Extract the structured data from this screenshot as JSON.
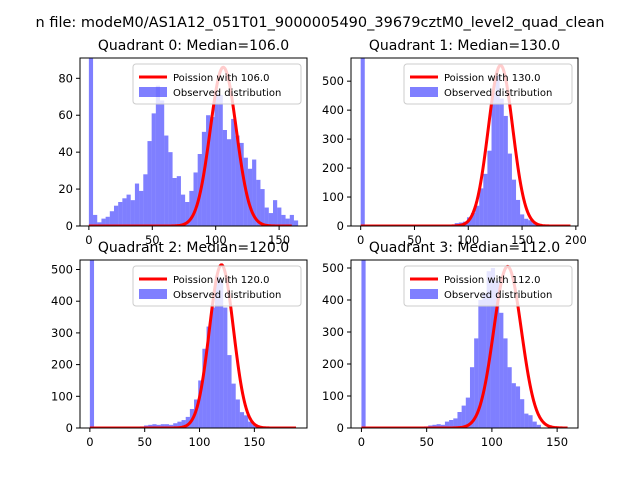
{
  "figure": {
    "suptitle": "n file: modeM0/AS1A12_051T01_9000005490_39679cztM0_level2_quad_clean"
  },
  "colors": {
    "hist": "#0000ff",
    "hist_alpha": 0.5,
    "fit": "#ff0000"
  },
  "chart_data": [
    {
      "type": "bar",
      "title": "Quadrant 0: Median=106.0",
      "xlim": [
        -7,
        172
      ],
      "ylim": [
        0,
        91
      ],
      "xticks": [
        0,
        50,
        100,
        150
      ],
      "yticks": [
        0,
        20,
        40,
        60,
        80
      ],
      "bin_start": 0,
      "bin_width": 3.3,
      "counts": [
        91,
        6,
        2,
        4,
        5,
        8,
        11,
        13,
        15,
        17,
        14,
        23,
        19,
        28,
        46,
        61,
        76,
        68,
        49,
        40,
        26,
        27,
        17,
        13,
        19,
        29,
        39,
        51,
        60,
        59,
        72,
        71,
        52,
        47,
        58,
        49,
        45,
        37,
        31,
        36,
        25,
        20,
        10,
        7,
        14,
        10,
        6,
        4,
        6,
        3
      ],
      "poisson": {
        "lambda": 106.0,
        "peak": 86,
        "sd": 10.3,
        "x_range": [
          0,
          160
        ]
      },
      "legend": {
        "fit_label": "Poission with 106.0",
        "hist_label": "Observed distribution",
        "loc": "upper right"
      }
    },
    {
      "type": "bar",
      "title": "Quadrant 1: Median=130.0",
      "xlim": [
        -9,
        202
      ],
      "ylim": [
        0,
        580
      ],
      "xticks": [
        0,
        50,
        100,
        150,
        200
      ],
      "yticks": [
        0,
        100,
        200,
        300,
        400,
        500
      ],
      "bin_start": 0,
      "bin_width": 3.8,
      "counts": [
        580,
        0,
        0,
        0,
        0,
        0,
        0,
        0,
        0,
        0,
        0,
        0,
        0,
        0,
        0,
        0,
        0,
        0,
        2,
        2,
        3,
        4,
        5,
        10,
        12,
        15,
        30,
        45,
        70,
        130,
        180,
        260,
        460,
        520,
        440,
        380,
        250,
        160,
        90,
        40,
        25,
        20,
        10,
        5,
        0,
        0,
        0,
        0,
        0,
        0
      ],
      "poisson": {
        "lambda": 130.0,
        "peak": 555,
        "sd": 11.4,
        "x_range": [
          0,
          195
        ]
      },
      "legend": {
        "fit_label": "Poission with 130.0",
        "hist_label": "Observed distribution",
        "loc": "upper right"
      }
    },
    {
      "type": "bar",
      "title": "Quadrant 2: Median=120.0",
      "xlim": [
        -9,
        198
      ],
      "ylim": [
        0,
        530
      ],
      "xticks": [
        0,
        50,
        100,
        150
      ],
      "yticks": [
        0,
        100,
        200,
        300,
        400,
        500
      ],
      "bin_start": 0,
      "bin_width": 3.8,
      "counts": [
        530,
        0,
        0,
        0,
        0,
        0,
        0,
        0,
        0,
        0,
        0,
        3,
        5,
        8,
        10,
        12,
        10,
        12,
        12,
        10,
        15,
        20,
        25,
        35,
        60,
        90,
        150,
        250,
        320,
        380,
        480,
        470,
        380,
        230,
        140,
        90,
        50,
        40,
        20,
        10,
        5,
        3,
        2,
        0,
        0,
        0,
        0,
        0,
        0,
        0
      ],
      "poisson": {
        "lambda": 120.0,
        "peak": 515,
        "sd": 10.95,
        "x_range": [
          0,
          188
        ]
      },
      "legend": {
        "fit_label": "Poission with 120.0",
        "hist_label": "Observed distribution",
        "loc": "upper right"
      }
    },
    {
      "type": "bar",
      "title": "Quadrant 3: Median=112.0",
      "xlim": [
        -8,
        166
      ],
      "ylim": [
        0,
        525
      ],
      "xticks": [
        0,
        50,
        100,
        150
      ],
      "yticks": [
        0,
        100,
        200,
        300,
        400,
        500
      ],
      "bin_start": 0,
      "bin_width": 3.2,
      "counts": [
        525,
        0,
        0,
        0,
        0,
        0,
        0,
        0,
        0,
        0,
        0,
        0,
        0,
        0,
        3,
        5,
        8,
        10,
        12,
        10,
        20,
        25,
        30,
        50,
        70,
        95,
        190,
        280,
        400,
        420,
        490,
        500,
        460,
        360,
        280,
        190,
        140,
        130,
        90,
        45,
        40,
        20,
        10,
        0,
        0,
        0,
        0,
        0,
        0,
        0
      ],
      "poisson": {
        "lambda": 112.0,
        "peak": 505,
        "sd": 10.6,
        "x_range": [
          0,
          158
        ]
      },
      "legend": {
        "fit_label": "Poission with 112.0",
        "hist_label": "Observed distribution",
        "loc": "upper right"
      }
    }
  ]
}
